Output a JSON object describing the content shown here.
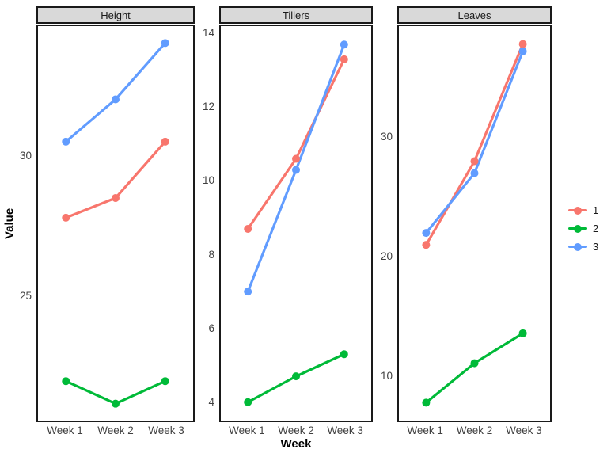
{
  "figure": {
    "y_axis_title": "Value",
    "x_axis_title": "Week",
    "background_color": "#ffffff",
    "panel_border_color": "#1a1a1a",
    "strip_fill_color": "#d9d9d9",
    "tick_label_color": "#404040"
  },
  "legend": {
    "position": "right",
    "items": [
      {
        "label": "1",
        "color": "#F8766D"
      },
      {
        "label": "2",
        "color": "#00BA38"
      },
      {
        "label": "3",
        "color": "#619CFF"
      }
    ]
  },
  "chart_data": {
    "type": "line",
    "categories": [
      "Week 1",
      "Week 2",
      "Week 3"
    ],
    "xlabel": "Week",
    "ylabel": "Value",
    "grid": false,
    "legend_position": "right",
    "facets": [
      {
        "title": "Height",
        "ylim": [
          20.6,
          34.6
        ],
        "y_ticks": [
          25,
          30
        ],
        "series": [
          {
            "name": "1",
            "color": "#F8766D",
            "values": [
              27.8,
              28.5,
              30.5
            ]
          },
          {
            "name": "2",
            "color": "#00BA38",
            "values": [
              22.0,
              21.2,
              22.0
            ]
          },
          {
            "name": "3",
            "color": "#619CFF",
            "values": [
              30.5,
              32.0,
              34.0
            ]
          }
        ]
      },
      {
        "title": "Tillers",
        "ylim": [
          3.5,
          14.2
        ],
        "y_ticks": [
          4,
          6,
          8,
          10,
          12,
          14
        ],
        "series": [
          {
            "name": "1",
            "color": "#F8766D",
            "values": [
              8.7,
              10.6,
              13.3
            ]
          },
          {
            "name": "2",
            "color": "#00BA38",
            "values": [
              4.0,
              4.7,
              5.3
            ]
          },
          {
            "name": "3",
            "color": "#619CFF",
            "values": [
              7.0,
              10.3,
              13.7
            ]
          }
        ]
      },
      {
        "title": "Leaves",
        "ylim": [
          6.3,
          39.3
        ],
        "y_ticks": [
          10,
          20,
          30
        ],
        "series": [
          {
            "name": "1",
            "color": "#F8766D",
            "values": [
              21.0,
              28.0,
              37.8
            ]
          },
          {
            "name": "2",
            "color": "#00BA38",
            "values": [
              7.8,
              11.1,
              13.6
            ]
          },
          {
            "name": "3",
            "color": "#619CFF",
            "values": [
              22.0,
              27.0,
              37.2
            ]
          }
        ]
      }
    ]
  }
}
